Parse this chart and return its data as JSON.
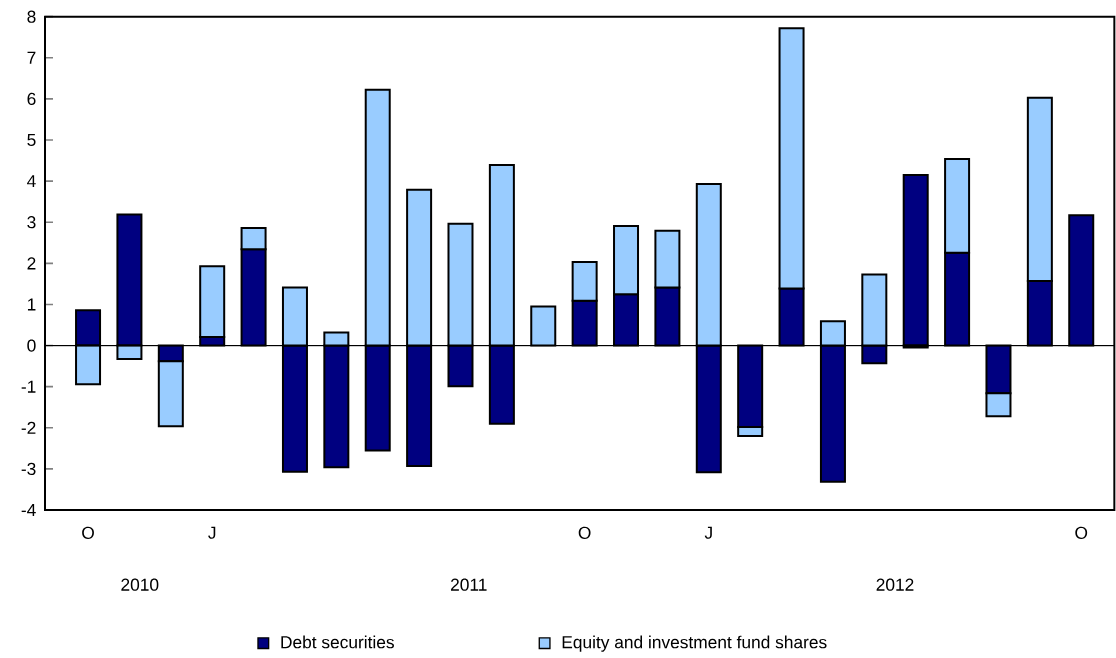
{
  "chart_data": {
    "type": "bar",
    "stacked": true,
    "categories": [
      "O",
      null,
      null,
      "J",
      null,
      null,
      null,
      null,
      null,
      null,
      null,
      null,
      "O",
      null,
      null,
      "J",
      null,
      null,
      null,
      null,
      null,
      null,
      null,
      null,
      "O"
    ],
    "series": [
      {
        "name": "Debt securities",
        "color": "#000080",
        "values": [
          0.86,
          3.19,
          -0.38,
          0.21,
          2.34,
          -3.07,
          -2.96,
          -2.55,
          -2.93,
          -0.99,
          -1.9,
          0,
          1.09,
          1.25,
          1.41,
          -3.08,
          -1.98,
          1.39,
          -3.31,
          -0.43,
          4.15,
          2.26,
          -1.16,
          1.57,
          3.17
        ]
      },
      {
        "name": "Equity and investment fund shares",
        "color": "#99ccff",
        "values": [
          -0.94,
          -0.33,
          -1.58,
          1.72,
          0.52,
          1.41,
          0.32,
          6.22,
          3.79,
          2.96,
          4.39,
          0.95,
          0.94,
          1.66,
          1.38,
          3.93,
          -0.22,
          6.33,
          0.59,
          1.73,
          -0.05,
          2.28,
          -0.56,
          4.46,
          0
        ]
      }
    ],
    "ylim": [
      -4,
      8
    ],
    "yticks": [
      -4,
      -3,
      -2,
      -1,
      0,
      1,
      2,
      3,
      4,
      5,
      6,
      7,
      8
    ],
    "legend": "bottom",
    "annotations": [
      "2010",
      "2011",
      "2012"
    ]
  }
}
